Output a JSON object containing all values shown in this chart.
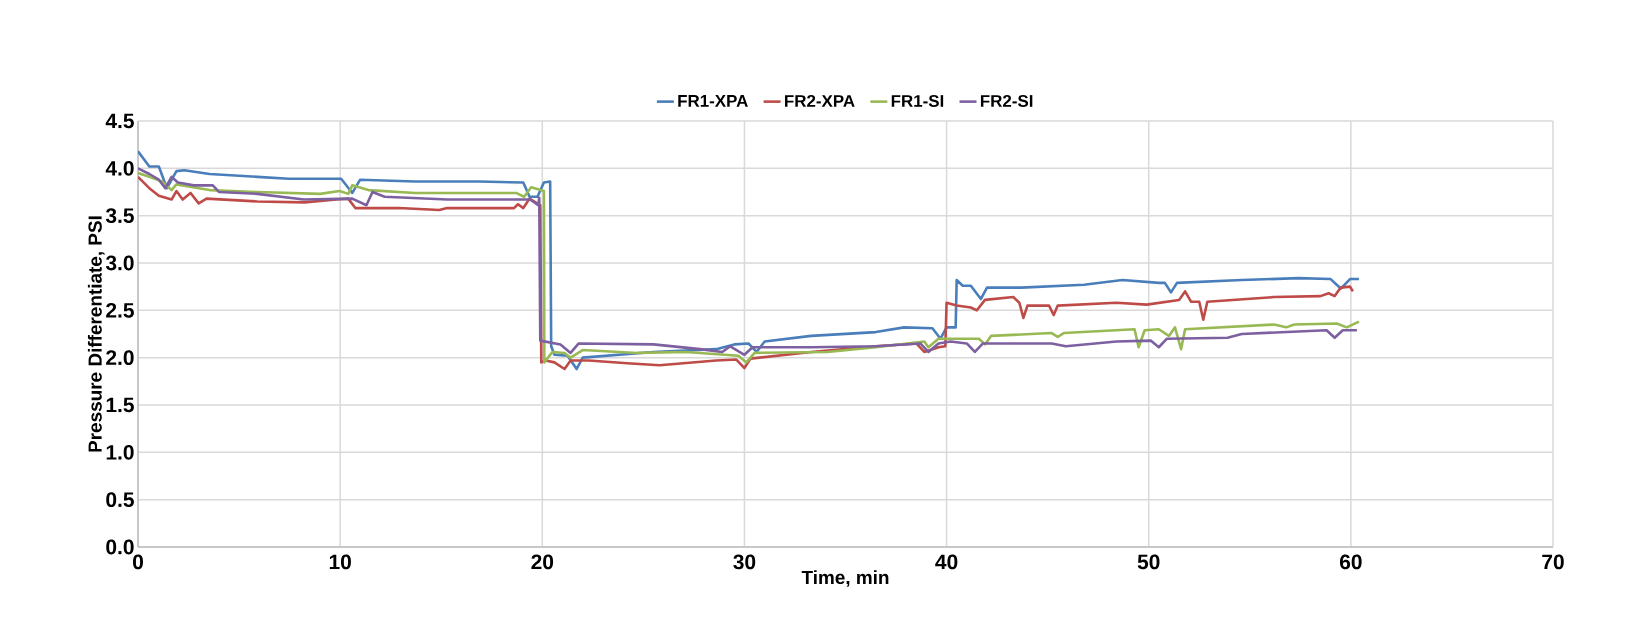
{
  "chart_data": {
    "type": "line",
    "xlabel": "Time, min",
    "ylabel": "Pressure Differentiate, PSI",
    "xlim": [
      0,
      70
    ],
    "ylim": [
      0,
      4.5
    ],
    "xticks": [
      0,
      10,
      20,
      30,
      40,
      50,
      60,
      70
    ],
    "yticks": [
      {
        "value": 0,
        "label": "0.0"
      },
      {
        "value": 0.5,
        "label": "0.5"
      },
      {
        "value": 1,
        "label": "1.0"
      },
      {
        "value": 1.5,
        "label": "1.5"
      },
      {
        "value": 2,
        "label": "2.0"
      },
      {
        "value": 2.5,
        "label": "2.5"
      },
      {
        "value": 3,
        "label": "3.0"
      },
      {
        "value": 3.5,
        "label": "3.5"
      },
      {
        "value": 4,
        "label": "4.0"
      },
      {
        "value": 4.5,
        "label": "4.5"
      }
    ],
    "grid": true,
    "legend": "top",
    "marker": "none",
    "line_style": "solid",
    "series": [
      {
        "name": "FR1-XPA",
        "color": "#4a7ebb",
        "x": [
          0,
          0.56,
          1.03,
          1.43,
          1.9,
          2.29,
          3.54,
          5.9,
          7.46,
          10.05,
          10.6,
          10.99,
          13.7,
          16.9,
          19.06,
          19.37,
          19.76,
          20.08,
          20.39,
          20.44,
          20.6,
          21.25,
          21.7,
          22.0,
          25.5,
          28.6,
          29.5,
          30.2,
          30.6,
          31.0,
          33.3,
          36.5,
          37.9,
          39.3,
          39.7,
          40.0,
          40.45,
          40.5,
          40.8,
          41.2,
          41.7,
          42.0,
          43.7,
          46.8,
          48.7,
          50.5,
          50.8,
          51.1,
          51.4,
          54.6,
          57.4,
          59.0,
          59.5,
          59.96,
          60.4
        ],
        "values": [
          4.18,
          4.02,
          4.02,
          3.79,
          3.97,
          3.98,
          3.94,
          3.91,
          3.89,
          3.89,
          3.74,
          3.88,
          3.86,
          3.86,
          3.85,
          3.7,
          3.7,
          3.85,
          3.86,
          2.12,
          2.03,
          2.02,
          1.88,
          2.0,
          2.06,
          2.09,
          2.14,
          2.15,
          2.06,
          2.17,
          2.23,
          2.27,
          2.32,
          2.31,
          2.2,
          2.32,
          2.32,
          2.82,
          2.76,
          2.76,
          2.62,
          2.74,
          2.74,
          2.77,
          2.82,
          2.79,
          2.79,
          2.69,
          2.79,
          2.82,
          2.84,
          2.83,
          2.73,
          2.83,
          2.83
        ]
      },
      {
        "name": "FR2-XPA",
        "color": "#be4b48",
        "x": [
          0,
          0.56,
          1.03,
          1.66,
          1.9,
          2.21,
          2.6,
          3.0,
          3.39,
          5.9,
          8.24,
          9.81,
          10.4,
          10.75,
          12.9,
          14.9,
          15.3,
          17.6,
          18.6,
          18.8,
          19.06,
          19.37,
          19.9,
          19.95,
          20.16,
          20.6,
          21.1,
          21.4,
          22.3,
          24.2,
          25.8,
          28.6,
          29.6,
          30.0,
          30.3,
          33.3,
          36.5,
          38.5,
          38.9,
          39.6,
          39.94,
          40.0,
          40.5,
          41.2,
          41.5,
          41.9,
          43.3,
          43.6,
          43.8,
          44.0,
          45.07,
          45.3,
          45.5,
          48.4,
          49.9,
          51.5,
          51.8,
          52.1,
          52.5,
          52.7,
          52.9,
          56.2,
          58.5,
          58.9,
          59.2,
          59.5,
          59.96,
          60.1
        ],
        "values": [
          3.91,
          3.79,
          3.71,
          3.67,
          3.76,
          3.67,
          3.74,
          3.63,
          3.68,
          3.65,
          3.64,
          3.67,
          3.68,
          3.58,
          3.58,
          3.56,
          3.58,
          3.58,
          3.58,
          3.62,
          3.58,
          3.68,
          3.61,
          1.95,
          1.97,
          1.95,
          1.88,
          1.97,
          1.97,
          1.94,
          1.92,
          1.97,
          1.98,
          1.89,
          1.99,
          2.06,
          2.12,
          2.15,
          2.06,
          2.11,
          2.12,
          2.58,
          2.55,
          2.53,
          2.5,
          2.61,
          2.64,
          2.58,
          2.42,
          2.55,
          2.55,
          2.45,
          2.55,
          2.58,
          2.56,
          2.61,
          2.7,
          2.59,
          2.59,
          2.4,
          2.59,
          2.64,
          2.65,
          2.68,
          2.65,
          2.74,
          2.75,
          2.7
        ]
      },
      {
        "name": "FR1-SI",
        "color": "#98b954",
        "x": [
          0,
          0.56,
          1.19,
          1.66,
          1.9,
          3.54,
          5.9,
          9.0,
          9.97,
          10.4,
          10.6,
          11.4,
          13.7,
          16.9,
          18.7,
          19.1,
          19.45,
          20.08,
          20.1,
          20.5,
          21.1,
          21.4,
          22.0,
          24.7,
          27.1,
          29.7,
          30.1,
          30.5,
          34.1,
          36.5,
          38.9,
          39.1,
          39.6,
          41.6,
          41.9,
          42.2,
          45.2,
          45.5,
          45.8,
          49.3,
          49.5,
          49.8,
          50.5,
          51.0,
          51.3,
          51.6,
          51.8,
          56.2,
          56.8,
          57.2,
          59.3,
          59.8,
          60.4
        ],
        "values": [
          3.95,
          3.91,
          3.86,
          3.77,
          3.83,
          3.77,
          3.75,
          3.73,
          3.76,
          3.73,
          3.82,
          3.77,
          3.74,
          3.74,
          3.74,
          3.7,
          3.8,
          3.76,
          1.95,
          2.06,
          2.05,
          2.0,
          2.08,
          2.05,
          2.06,
          2.02,
          1.95,
          2.05,
          2.06,
          2.11,
          2.17,
          2.11,
          2.2,
          2.2,
          2.14,
          2.23,
          2.26,
          2.22,
          2.26,
          2.3,
          2.11,
          2.29,
          2.3,
          2.23,
          2.32,
          2.09,
          2.3,
          2.35,
          2.32,
          2.35,
          2.36,
          2.32,
          2.38
        ]
      },
      {
        "name": "FR2-SI",
        "color": "#7d60a0",
        "x": [
          0,
          0.56,
          1.03,
          1.35,
          1.66,
          1.97,
          2.76,
          3.7,
          4.0,
          5.9,
          8.2,
          10.6,
          11.3,
          11.6,
          12.2,
          15.3,
          18.4,
          19.4,
          19.8,
          19.85,
          19.9,
          20.9,
          21.4,
          21.8,
          25.5,
          27.8,
          28.9,
          29.3,
          30.0,
          30.4,
          33.3,
          36.5,
          38.7,
          39.1,
          39.6,
          40.2,
          41.0,
          41.4,
          41.8,
          45.2,
          45.9,
          48.4,
          50.1,
          50.5,
          50.9,
          53.9,
          54.6,
          58.8,
          59.2,
          59.6,
          60.3
        ],
        "values": [
          4.0,
          3.94,
          3.88,
          3.79,
          3.91,
          3.85,
          3.82,
          3.82,
          3.75,
          3.73,
          3.67,
          3.68,
          3.61,
          3.75,
          3.7,
          3.67,
          3.67,
          3.67,
          3.61,
          3.69,
          2.18,
          2.14,
          2.05,
          2.15,
          2.14,
          2.09,
          2.06,
          2.12,
          2.03,
          2.11,
          2.11,
          2.12,
          2.15,
          2.06,
          2.15,
          2.17,
          2.15,
          2.06,
          2.15,
          2.15,
          2.12,
          2.17,
          2.18,
          2.11,
          2.2,
          2.21,
          2.25,
          2.29,
          2.21,
          2.29,
          2.29
        ]
      }
    ]
  }
}
